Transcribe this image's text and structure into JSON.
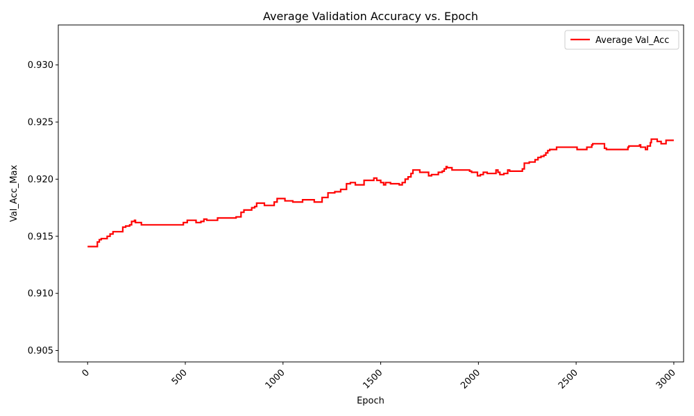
{
  "chart_data": {
    "type": "line",
    "title": "Average Validation Accuracy vs. Epoch",
    "xlabel": "Epoch",
    "ylabel": "Val_Acc_Max",
    "xlim": [
      -150,
      3050
    ],
    "ylim": [
      0.904,
      0.9335
    ],
    "xticks": [
      0,
      500,
      1000,
      1500,
      2000,
      2500,
      3000
    ],
    "yticks": [
      0.905,
      0.91,
      0.915,
      0.92,
      0.925,
      0.93
    ],
    "ytick_labels": [
      "0.905",
      "0.910",
      "0.915",
      "0.920",
      "0.925",
      "0.930"
    ],
    "xtick_rotation": -45,
    "grid": false,
    "legend_position": "top-right",
    "series": [
      {
        "name": "Average Val_Acc",
        "color": "#ff0000",
        "step": true,
        "points": [
          [
            0,
            0.9141
          ],
          [
            45,
            0.9141
          ],
          [
            50,
            0.9145
          ],
          [
            60,
            0.9147
          ],
          [
            70,
            0.9148
          ],
          [
            95,
            0.9148
          ],
          [
            100,
            0.915
          ],
          [
            115,
            0.9152
          ],
          [
            130,
            0.9154
          ],
          [
            175,
            0.9154
          ],
          [
            180,
            0.9158
          ],
          [
            195,
            0.9159
          ],
          [
            215,
            0.916
          ],
          [
            225,
            0.9163
          ],
          [
            240,
            0.9164
          ],
          [
            245,
            0.9162
          ],
          [
            265,
            0.9162
          ],
          [
            275,
            0.916
          ],
          [
            480,
            0.916
          ],
          [
            490,
            0.9162
          ],
          [
            510,
            0.9164
          ],
          [
            545,
            0.9164
          ],
          [
            555,
            0.9162
          ],
          [
            580,
            0.9163
          ],
          [
            595,
            0.9165
          ],
          [
            610,
            0.9164
          ],
          [
            660,
            0.9164
          ],
          [
            665,
            0.9166
          ],
          [
            750,
            0.9166
          ],
          [
            760,
            0.9167
          ],
          [
            785,
            0.9171
          ],
          [
            800,
            0.9173
          ],
          [
            830,
            0.9173
          ],
          [
            840,
            0.9175
          ],
          [
            855,
            0.9176
          ],
          [
            865,
            0.9179
          ],
          [
            895,
            0.9179
          ],
          [
            905,
            0.9177
          ],
          [
            945,
            0.9177
          ],
          [
            955,
            0.918
          ],
          [
            970,
            0.9183
          ],
          [
            1000,
            0.9183
          ],
          [
            1010,
            0.9181
          ],
          [
            1040,
            0.9181
          ],
          [
            1050,
            0.918
          ],
          [
            1095,
            0.918
          ],
          [
            1100,
            0.9182
          ],
          [
            1150,
            0.9182
          ],
          [
            1160,
            0.918
          ],
          [
            1190,
            0.918
          ],
          [
            1200,
            0.9184
          ],
          [
            1225,
            0.9184
          ],
          [
            1230,
            0.9188
          ],
          [
            1260,
            0.9188
          ],
          [
            1265,
            0.9189
          ],
          [
            1290,
            0.9189
          ],
          [
            1295,
            0.9191
          ],
          [
            1320,
            0.9191
          ],
          [
            1325,
            0.9196
          ],
          [
            1345,
            0.9197
          ],
          [
            1370,
            0.9195
          ],
          [
            1405,
            0.9195
          ],
          [
            1415,
            0.9199
          ],
          [
            1460,
            0.9199
          ],
          [
            1465,
            0.9201
          ],
          [
            1480,
            0.9199
          ],
          [
            1500,
            0.9197
          ],
          [
            1515,
            0.9195
          ],
          [
            1525,
            0.9197
          ],
          [
            1545,
            0.9197
          ],
          [
            1550,
            0.9196
          ],
          [
            1590,
            0.9196
          ],
          [
            1595,
            0.9195
          ],
          [
            1610,
            0.9197
          ],
          [
            1625,
            0.92
          ],
          [
            1640,
            0.9202
          ],
          [
            1655,
            0.9205
          ],
          [
            1665,
            0.9208
          ],
          [
            1690,
            0.9208
          ],
          [
            1700,
            0.9206
          ],
          [
            1730,
            0.9206
          ],
          [
            1745,
            0.9203
          ],
          [
            1760,
            0.9204
          ],
          [
            1790,
            0.9204
          ],
          [
            1795,
            0.9206
          ],
          [
            1815,
            0.9207
          ],
          [
            1825,
            0.9209
          ],
          [
            1835,
            0.9211
          ],
          [
            1840,
            0.921
          ],
          [
            1860,
            0.921
          ],
          [
            1865,
            0.9208
          ],
          [
            1945,
            0.9208
          ],
          [
            1955,
            0.9207
          ],
          [
            1965,
            0.9206
          ],
          [
            1990,
            0.9206
          ],
          [
            1995,
            0.9203
          ],
          [
            2010,
            0.9204
          ],
          [
            2025,
            0.9206
          ],
          [
            2045,
            0.9205
          ],
          [
            2085,
            0.9205
          ],
          [
            2090,
            0.9208
          ],
          [
            2100,
            0.9206
          ],
          [
            2110,
            0.9204
          ],
          [
            2130,
            0.9205
          ],
          [
            2140,
            0.9205
          ],
          [
            2150,
            0.9208
          ],
          [
            2160,
            0.9207
          ],
          [
            2215,
            0.9207
          ],
          [
            2225,
            0.9209
          ],
          [
            2235,
            0.9214
          ],
          [
            2260,
            0.9215
          ],
          [
            2290,
            0.9217
          ],
          [
            2305,
            0.9219
          ],
          [
            2320,
            0.922
          ],
          [
            2335,
            0.9221
          ],
          [
            2345,
            0.9223
          ],
          [
            2355,
            0.9225
          ],
          [
            2365,
            0.9226
          ],
          [
            2395,
            0.9226
          ],
          [
            2400,
            0.9228
          ],
          [
            2500,
            0.9228
          ],
          [
            2505,
            0.9226
          ],
          [
            2545,
            0.9226
          ],
          [
            2555,
            0.9228
          ],
          [
            2570,
            0.9228
          ],
          [
            2580,
            0.923
          ],
          [
            2585,
            0.9231
          ],
          [
            2640,
            0.9231
          ],
          [
            2645,
            0.9227
          ],
          [
            2655,
            0.9226
          ],
          [
            2760,
            0.9226
          ],
          [
            2765,
            0.9228
          ],
          [
            2770,
            0.9229
          ],
          [
            2820,
            0.9229
          ],
          [
            2825,
            0.923
          ],
          [
            2830,
            0.9228
          ],
          [
            2850,
            0.9228
          ],
          [
            2855,
            0.9226
          ],
          [
            2865,
            0.9229
          ],
          [
            2880,
            0.9232
          ],
          [
            2885,
            0.9235
          ],
          [
            2910,
            0.9235
          ],
          [
            2915,
            0.9233
          ],
          [
            2930,
            0.9233
          ],
          [
            2935,
            0.9231
          ],
          [
            2955,
            0.9231
          ],
          [
            2960,
            0.9234
          ],
          [
            3000,
            0.9234
          ]
        ]
      }
    ]
  }
}
